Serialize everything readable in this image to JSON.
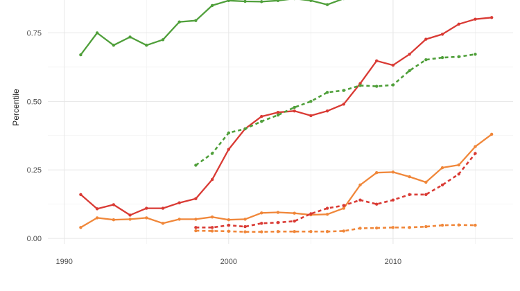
{
  "chart_data": {
    "type": "line",
    "title": "",
    "xlabel": "",
    "ylabel": "Percentile",
    "xlim": [
      1989.0,
      2017.3
    ],
    "ylim": [
      -0.02,
      0.87
    ],
    "x_ticks": [
      1990,
      2000,
      2010
    ],
    "x_tick_labels": [
      "1990",
      "2000",
      "2010"
    ],
    "y_ticks": [
      0.0,
      0.25,
      0.5,
      0.75
    ],
    "y_tick_labels": [
      "0.00",
      "0.25",
      "0.50",
      "0.75"
    ],
    "grid": true,
    "legend": "none",
    "series": [
      {
        "color": "#4f9f3a",
        "style": "solid",
        "points": [
          [
            1991,
            0.67
          ],
          [
            1992,
            0.75
          ],
          [
            1993,
            0.705
          ],
          [
            1994,
            0.735
          ],
          [
            1995,
            0.705
          ],
          [
            1996,
            0.725
          ],
          [
            1997,
            0.79
          ],
          [
            1998,
            0.795
          ],
          [
            1999,
            0.85
          ],
          [
            2000,
            0.868
          ],
          [
            2001,
            0.865
          ],
          [
            2002,
            0.864
          ],
          [
            2003,
            0.868
          ],
          [
            2004,
            0.875
          ],
          [
            2005,
            0.868
          ],
          [
            2006,
            0.853
          ],
          [
            2007,
            0.875
          ]
        ]
      },
      {
        "color": "#d93a34",
        "style": "solid",
        "points": [
          [
            1991,
            0.16
          ],
          [
            1992,
            0.108
          ],
          [
            1993,
            0.123
          ],
          [
            1994,
            0.085
          ],
          [
            1995,
            0.11
          ],
          [
            1996,
            0.11
          ],
          [
            1997,
            0.13
          ],
          [
            1998,
            0.145
          ],
          [
            1999,
            0.215
          ],
          [
            2000,
            0.325
          ],
          [
            2001,
            0.4
          ],
          [
            2002,
            0.445
          ],
          [
            2003,
            0.46
          ],
          [
            2004,
            0.465
          ],
          [
            2005,
            0.448
          ],
          [
            2006,
            0.465
          ],
          [
            2007,
            0.49
          ],
          [
            2008,
            0.565
          ],
          [
            2009,
            0.648
          ],
          [
            2010,
            0.632
          ],
          [
            2011,
            0.672
          ],
          [
            2012,
            0.727
          ],
          [
            2013,
            0.745
          ],
          [
            2014,
            0.782
          ],
          [
            2015,
            0.8
          ],
          [
            2016,
            0.806
          ]
        ]
      },
      {
        "color": "#f0873a",
        "style": "solid",
        "points": [
          [
            1991,
            0.04
          ],
          [
            1992,
            0.075
          ],
          [
            1993,
            0.068
          ],
          [
            1994,
            0.07
          ],
          [
            1995,
            0.075
          ],
          [
            1996,
            0.055
          ],
          [
            1997,
            0.07
          ],
          [
            1998,
            0.07
          ],
          [
            1999,
            0.078
          ],
          [
            2000,
            0.068
          ],
          [
            2001,
            0.07
          ],
          [
            2002,
            0.093
          ],
          [
            2003,
            0.095
          ],
          [
            2004,
            0.092
          ],
          [
            2005,
            0.086
          ],
          [
            2006,
            0.088
          ],
          [
            2007,
            0.11
          ],
          [
            2008,
            0.195
          ],
          [
            2009,
            0.24
          ],
          [
            2010,
            0.242
          ],
          [
            2011,
            0.225
          ],
          [
            2012,
            0.205
          ],
          [
            2013,
            0.258
          ],
          [
            2014,
            0.268
          ],
          [
            2015,
            0.335
          ],
          [
            2016,
            0.38
          ]
        ]
      },
      {
        "color": "#4f9f3a",
        "style": "dashed",
        "points": [
          [
            1998,
            0.267
          ],
          [
            1999,
            0.31
          ],
          [
            2000,
            0.385
          ],
          [
            2001,
            0.4
          ],
          [
            2002,
            0.427
          ],
          [
            2003,
            0.45
          ],
          [
            2004,
            0.478
          ],
          [
            2005,
            0.5
          ],
          [
            2006,
            0.533
          ],
          [
            2007,
            0.54
          ],
          [
            2008,
            0.558
          ],
          [
            2009,
            0.555
          ],
          [
            2010,
            0.56
          ],
          [
            2011,
            0.612
          ],
          [
            2012,
            0.652
          ],
          [
            2013,
            0.66
          ],
          [
            2014,
            0.663
          ],
          [
            2015,
            0.672
          ]
        ]
      },
      {
        "color": "#d93a34",
        "style": "dashed",
        "points": [
          [
            1998,
            0.04
          ],
          [
            1999,
            0.04
          ],
          [
            2000,
            0.048
          ],
          [
            2001,
            0.043
          ],
          [
            2002,
            0.055
          ],
          [
            2003,
            0.058
          ],
          [
            2004,
            0.063
          ],
          [
            2005,
            0.09
          ],
          [
            2006,
            0.11
          ],
          [
            2007,
            0.12
          ],
          [
            2008,
            0.14
          ],
          [
            2009,
            0.125
          ],
          [
            2010,
            0.14
          ],
          [
            2011,
            0.16
          ],
          [
            2012,
            0.16
          ],
          [
            2013,
            0.195
          ],
          [
            2014,
            0.235
          ],
          [
            2015,
            0.31
          ]
        ]
      },
      {
        "color": "#f0873a",
        "style": "dashed",
        "points": [
          [
            1998,
            0.028
          ],
          [
            1999,
            0.027
          ],
          [
            2000,
            0.026
          ],
          [
            2001,
            0.024
          ],
          [
            2002,
            0.024
          ],
          [
            2003,
            0.025
          ],
          [
            2004,
            0.025
          ],
          [
            2005,
            0.025
          ],
          [
            2006,
            0.025
          ],
          [
            2007,
            0.027
          ],
          [
            2008,
            0.037
          ],
          [
            2009,
            0.038
          ],
          [
            2010,
            0.04
          ],
          [
            2011,
            0.04
          ],
          [
            2012,
            0.043
          ],
          [
            2013,
            0.048
          ],
          [
            2014,
            0.049
          ],
          [
            2015,
            0.048
          ]
        ]
      }
    ]
  }
}
